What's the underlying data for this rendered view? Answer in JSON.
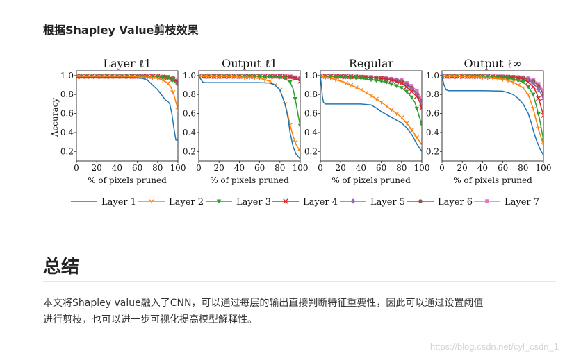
{
  "section_heading": "根据Shapley Value剪枝效果",
  "summary_heading": "总结",
  "paragraph_lines": [
    "本文将Shapley value融入了CNN，可以通过每层的输出直接判断特征重要性，因此可以通过设置阈值",
    "进行剪枝，也可以进一步可视化提高模型解释性。"
  ],
  "watermark": "https://blog.csdn.net/cyl_csdn_1",
  "chart_data": [
    {
      "type": "line",
      "title": "Layer ℓ1",
      "xlabel": "% of pixels pruned",
      "ylabel": "Accuracy",
      "xlim": [
        0,
        100
      ],
      "ylim": [
        0.1,
        1.05
      ],
      "xticks": [
        0,
        20,
        40,
        60,
        80,
        100
      ],
      "yticks": [
        0.2,
        0.4,
        0.6,
        0.8,
        1.0
      ],
      "series": [
        {
          "name": "Layer 1",
          "x": [
            0,
            10,
            20,
            30,
            40,
            50,
            60,
            65,
            70,
            75,
            80,
            85,
            88,
            90,
            92,
            94,
            96,
            98,
            100
          ],
          "y": [
            0.98,
            0.98,
            0.98,
            0.98,
            0.98,
            0.98,
            0.975,
            0.97,
            0.95,
            0.9,
            0.85,
            0.78,
            0.74,
            0.73,
            0.7,
            0.6,
            0.45,
            0.32,
            0.32
          ]
        },
        {
          "name": "Layer 2",
          "x": [
            0,
            20,
            40,
            60,
            70,
            80,
            85,
            90,
            93,
            96,
            98,
            100
          ],
          "y": [
            0.99,
            0.99,
            0.99,
            0.985,
            0.98,
            0.97,
            0.95,
            0.92,
            0.88,
            0.8,
            0.72,
            0.64
          ]
        },
        {
          "name": "Layer 3",
          "x": [
            0,
            20,
            40,
            60,
            80,
            90,
            95,
            100
          ],
          "y": [
            0.99,
            0.99,
            0.99,
            0.99,
            0.985,
            0.97,
            0.95,
            0.9
          ]
        },
        {
          "name": "Layer 4",
          "x": [
            0,
            20,
            40,
            60,
            80,
            90,
            95,
            100
          ],
          "y": [
            0.99,
            0.99,
            0.99,
            0.99,
            0.99,
            0.98,
            0.96,
            0.93
          ]
        },
        {
          "name": "Layer 5",
          "x": [
            0,
            20,
            40,
            60,
            80,
            90,
            95,
            100
          ],
          "y": [
            0.99,
            0.99,
            0.99,
            0.99,
            0.99,
            0.98,
            0.96,
            0.92
          ]
        },
        {
          "name": "Layer 6",
          "x": [
            0,
            20,
            40,
            60,
            80,
            90,
            95,
            100
          ],
          "y": [
            0.99,
            0.99,
            0.99,
            0.99,
            0.99,
            0.985,
            0.97,
            0.94
          ]
        },
        {
          "name": "Layer 7",
          "x": [
            0,
            20,
            40,
            60,
            80,
            90,
            95,
            100
          ],
          "y": [
            0.99,
            0.99,
            0.99,
            0.99,
            0.99,
            0.985,
            0.97,
            0.95
          ]
        }
      ]
    },
    {
      "type": "line",
      "title": "Output ℓ1",
      "xlabel": "% of pixels pruned",
      "xlim": [
        0,
        100
      ],
      "ylim": [
        0.1,
        1.05
      ],
      "xticks": [
        0,
        20,
        40,
        60,
        80,
        100
      ],
      "yticks": [
        0.2,
        0.4,
        0.6,
        0.8,
        1.0
      ],
      "series": [
        {
          "name": "Layer 1",
          "x": [
            0,
            2,
            4,
            6,
            10,
            20,
            40,
            60,
            70,
            75,
            80,
            85,
            88,
            90,
            93,
            96,
            100
          ],
          "y": [
            0.99,
            0.96,
            0.93,
            0.925,
            0.925,
            0.925,
            0.925,
            0.925,
            0.92,
            0.9,
            0.85,
            0.7,
            0.55,
            0.4,
            0.25,
            0.17,
            0.12
          ]
        },
        {
          "name": "Layer 2",
          "x": [
            0,
            20,
            40,
            60,
            70,
            75,
            80,
            85,
            88,
            90,
            93,
            96,
            100
          ],
          "y": [
            0.99,
            0.99,
            0.985,
            0.97,
            0.94,
            0.9,
            0.85,
            0.7,
            0.58,
            0.48,
            0.36,
            0.27,
            0.2
          ]
        },
        {
          "name": "Layer 3",
          "x": [
            0,
            20,
            40,
            60,
            70,
            80,
            85,
            90,
            93,
            96,
            98,
            100
          ],
          "y": [
            0.99,
            0.99,
            0.99,
            0.99,
            0.985,
            0.98,
            0.97,
            0.93,
            0.86,
            0.7,
            0.58,
            0.47
          ]
        },
        {
          "name": "Layer 4",
          "x": [
            0,
            20,
            40,
            60,
            80,
            90,
            95,
            100
          ],
          "y": [
            0.99,
            0.99,
            0.99,
            0.99,
            0.99,
            0.985,
            0.97,
            0.94
          ]
        },
        {
          "name": "Layer 5",
          "x": [
            0,
            20,
            40,
            60,
            80,
            90,
            95,
            100
          ],
          "y": [
            0.99,
            0.99,
            0.99,
            0.99,
            0.99,
            0.985,
            0.975,
            0.96
          ]
        },
        {
          "name": "Layer 6",
          "x": [
            0,
            20,
            40,
            60,
            80,
            90,
            95,
            100
          ],
          "y": [
            0.99,
            0.99,
            0.99,
            0.99,
            0.99,
            0.985,
            0.98,
            0.97
          ]
        },
        {
          "name": "Layer 7",
          "x": [
            0,
            20,
            40,
            60,
            80,
            90,
            95,
            100
          ],
          "y": [
            0.99,
            0.99,
            0.99,
            0.99,
            0.99,
            0.99,
            0.98,
            0.97
          ]
        }
      ]
    },
    {
      "type": "line",
      "title": "Regular",
      "xlabel": "% of pixels pruned",
      "xlim": [
        0,
        100
      ],
      "ylim": [
        0.1,
        1.05
      ],
      "xticks": [
        0,
        20,
        40,
        60,
        80,
        100
      ],
      "yticks": [
        0.2,
        0.4,
        0.6,
        0.8,
        1.0
      ],
      "series": [
        {
          "name": "Layer 1",
          "x": [
            0,
            1,
            2,
            3,
            5,
            10,
            20,
            40,
            50,
            55,
            60,
            65,
            70,
            80,
            85,
            90,
            95,
            100
          ],
          "y": [
            0.99,
            0.9,
            0.78,
            0.72,
            0.7,
            0.7,
            0.7,
            0.7,
            0.69,
            0.66,
            0.62,
            0.59,
            0.56,
            0.5,
            0.45,
            0.38,
            0.28,
            0.2
          ]
        },
        {
          "name": "Layer 2",
          "x": [
            0,
            10,
            20,
            30,
            40,
            50,
            60,
            70,
            80,
            85,
            90,
            95,
            100
          ],
          "y": [
            0.99,
            0.97,
            0.94,
            0.9,
            0.85,
            0.79,
            0.72,
            0.64,
            0.56,
            0.5,
            0.43,
            0.35,
            0.27
          ]
        },
        {
          "name": "Layer 3",
          "x": [
            0,
            20,
            40,
            60,
            70,
            80,
            85,
            90,
            93,
            96,
            100
          ],
          "y": [
            0.99,
            0.985,
            0.97,
            0.94,
            0.91,
            0.87,
            0.83,
            0.77,
            0.72,
            0.62,
            0.48
          ]
        },
        {
          "name": "Layer 4",
          "x": [
            0,
            20,
            40,
            60,
            70,
            80,
            85,
            90,
            95,
            98,
            100
          ],
          "y": [
            0.99,
            0.99,
            0.985,
            0.97,
            0.95,
            0.92,
            0.88,
            0.83,
            0.78,
            0.72,
            0.66
          ]
        },
        {
          "name": "Layer 5",
          "x": [
            0,
            20,
            40,
            60,
            70,
            80,
            85,
            90,
            95,
            98,
            100
          ],
          "y": [
            0.99,
            0.99,
            0.985,
            0.975,
            0.96,
            0.93,
            0.9,
            0.86,
            0.8,
            0.75,
            0.7
          ]
        },
        {
          "name": "Layer 6",
          "x": [
            0,
            20,
            40,
            60,
            70,
            80,
            85,
            90,
            95,
            98,
            100
          ],
          "y": [
            0.99,
            0.99,
            0.985,
            0.975,
            0.96,
            0.94,
            0.91,
            0.87,
            0.81,
            0.76,
            0.73
          ]
        },
        {
          "name": "Layer 7",
          "x": [
            0,
            20,
            40,
            60,
            70,
            80,
            85,
            90,
            95,
            98,
            100
          ],
          "y": [
            0.99,
            0.99,
            0.985,
            0.975,
            0.965,
            0.95,
            0.92,
            0.89,
            0.84,
            0.79,
            0.76
          ]
        }
      ]
    },
    {
      "type": "line",
      "title": "Output ℓ∞",
      "xlabel": "% of pixels pruned",
      "xlim": [
        0,
        100
      ],
      "ylim": [
        0.1,
        1.05
      ],
      "xticks": [
        0,
        20,
        40,
        60,
        80,
        100
      ],
      "yticks": [
        0.2,
        0.4,
        0.6,
        0.8,
        1.0
      ],
      "series": [
        {
          "name": "Layer 1",
          "x": [
            0,
            2,
            4,
            6,
            10,
            20,
            40,
            60,
            65,
            70,
            75,
            80,
            85,
            88,
            90,
            93,
            96,
            100
          ],
          "y": [
            0.99,
            0.9,
            0.85,
            0.84,
            0.84,
            0.84,
            0.84,
            0.835,
            0.82,
            0.8,
            0.76,
            0.7,
            0.6,
            0.5,
            0.42,
            0.32,
            0.24,
            0.16
          ]
        },
        {
          "name": "Layer 2",
          "x": [
            0,
            20,
            40,
            60,
            70,
            80,
            85,
            90,
            93,
            96,
            100
          ],
          "y": [
            0.99,
            0.99,
            0.98,
            0.96,
            0.93,
            0.87,
            0.8,
            0.65,
            0.52,
            0.4,
            0.27
          ]
        },
        {
          "name": "Layer 3",
          "x": [
            0,
            20,
            40,
            60,
            70,
            80,
            85,
            90,
            93,
            96,
            100
          ],
          "y": [
            0.99,
            0.99,
            0.99,
            0.98,
            0.96,
            0.93,
            0.88,
            0.8,
            0.68,
            0.55,
            0.32
          ]
        },
        {
          "name": "Layer 4",
          "x": [
            0,
            20,
            40,
            60,
            70,
            80,
            85,
            90,
            93,
            96,
            100
          ],
          "y": [
            0.99,
            0.99,
            0.99,
            0.985,
            0.98,
            0.96,
            0.93,
            0.88,
            0.82,
            0.73,
            0.58
          ]
        },
        {
          "name": "Layer 5",
          "x": [
            0,
            20,
            40,
            60,
            70,
            80,
            85,
            90,
            93,
            96,
            100
          ],
          "y": [
            0.99,
            0.99,
            0.99,
            0.985,
            0.98,
            0.97,
            0.95,
            0.92,
            0.88,
            0.84,
            0.75
          ]
        },
        {
          "name": "Layer 6",
          "x": [
            0,
            20,
            40,
            60,
            70,
            80,
            85,
            90,
            93,
            96,
            100
          ],
          "y": [
            0.99,
            0.99,
            0.99,
            0.99,
            0.985,
            0.975,
            0.96,
            0.94,
            0.91,
            0.88,
            0.8
          ]
        },
        {
          "name": "Layer 7",
          "x": [
            0,
            20,
            40,
            60,
            70,
            80,
            85,
            90,
            93,
            96,
            100
          ],
          "y": [
            0.99,
            0.99,
            0.99,
            0.99,
            0.985,
            0.98,
            0.97,
            0.95,
            0.93,
            0.9,
            0.84
          ]
        }
      ]
    }
  ],
  "series_styles": [
    {
      "name": "Layer 1",
      "color": "#1f77b4",
      "marker": "none"
    },
    {
      "name": "Layer 2",
      "color": "#ff7f0e",
      "marker": "tri-down-line"
    },
    {
      "name": "Layer 3",
      "color": "#2ca02c",
      "marker": "triangle-down"
    },
    {
      "name": "Layer 4",
      "color": "#d62728",
      "marker": "x"
    },
    {
      "name": "Layer 5",
      "color": "#9467bd",
      "marker": "plus"
    },
    {
      "name": "Layer 6",
      "color": "#8c564b",
      "marker": "circle"
    },
    {
      "name": "Layer 7",
      "color": "#e377c2",
      "marker": "square"
    }
  ]
}
